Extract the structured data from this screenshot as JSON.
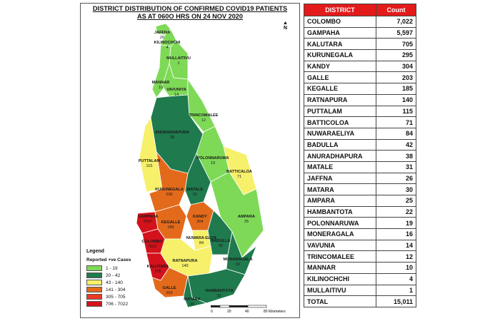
{
  "map": {
    "title_line1": "DISTRICT DISTRIBUTION OF CONFIRMED COVID19 PATIENTS",
    "title_line2": "AS AT 060O HRS ON 24 NOV 2020",
    "north_label": "N",
    "colors": {
      "c1": "#7ed957",
      "c2": "#1f7a4e",
      "c3": "#f6f06a",
      "c4": "#e36a1b",
      "c5": "#ea3a22",
      "c6": "#d3121c"
    },
    "legend": {
      "title": "Legend",
      "subtitle": "Reported +ve Cases",
      "items": [
        {
          "label": "1 - 19",
          "color": "#7ed957"
        },
        {
          "label": "20 - 42",
          "color": "#1f7a4e"
        },
        {
          "label": "43 - 140",
          "color": "#f6f06a"
        },
        {
          "label": "141 - 304",
          "color": "#e36a1b"
        },
        {
          "label": "305 - 705",
          "color": "#ea3a22"
        },
        {
          "label": "706 - 7022",
          "color": "#d3121c"
        }
      ]
    },
    "scale": {
      "labels": [
        "0",
        "20",
        "40",
        "80 Kilometers"
      ]
    },
    "districts": [
      {
        "name": "JAFFNA",
        "count": "26"
      },
      {
        "name": "KILINOCHCHI",
        "count": "4"
      },
      {
        "name": "MULLAITIVU",
        "count": "1"
      },
      {
        "name": "MANNAR",
        "count": "10"
      },
      {
        "name": "VAVUNIYA",
        "count": "14"
      },
      {
        "name": "TRINCOMALEE",
        "count": "12"
      },
      {
        "name": "ANURADHAPURA",
        "count": "38"
      },
      {
        "name": "PUTTALAM",
        "count": "115"
      },
      {
        "name": "POLONNARUWA",
        "count": "19"
      },
      {
        "name": "BATTICALOA",
        "count": "71"
      },
      {
        "name": "KURUNEGALA",
        "count": "295"
      },
      {
        "name": "MATALE",
        "count": "31"
      },
      {
        "name": "KANDY",
        "count": "304"
      },
      {
        "name": "AMPARA",
        "count": "25"
      },
      {
        "name": "GAMPAHA",
        "count": "5597"
      },
      {
        "name": "KEGALLE",
        "count": "185"
      },
      {
        "name": "NUWARA ELIYA",
        "count": "84"
      },
      {
        "name": "BADULLA",
        "count": "42"
      },
      {
        "name": "COLOMBO",
        "count": "7022"
      },
      {
        "name": "MONARAGALA",
        "count": "16"
      },
      {
        "name": "RATNAPURA",
        "count": "140"
      },
      {
        "name": "KALUTARA",
        "count": "705"
      },
      {
        "name": "GALLE",
        "count": "203"
      },
      {
        "name": "HAMBANTOTA",
        "count": "22"
      },
      {
        "name": "MATARA",
        "count": "30"
      }
    ]
  },
  "table": {
    "header_district": "DISTRICT",
    "header_count": "Count",
    "header_color": "#e31b1b",
    "rows": [
      {
        "district": "COLOMBO",
        "count": "7,022"
      },
      {
        "district": "GAMPAHA",
        "count": "5,597"
      },
      {
        "district": "KALUTARA",
        "count": "705"
      },
      {
        "district": "KURUNEGALA",
        "count": "295"
      },
      {
        "district": "KANDY",
        "count": "304"
      },
      {
        "district": "GALLE",
        "count": "203"
      },
      {
        "district": "KEGALLE",
        "count": "185"
      },
      {
        "district": "RATNAPURA",
        "count": "140"
      },
      {
        "district": "PUTTALAM",
        "count": "115"
      },
      {
        "district": "BATTICOLOA",
        "count": "71"
      },
      {
        "district": "NUWARAELIYA",
        "count": "84"
      },
      {
        "district": "BADULLA",
        "count": "42"
      },
      {
        "district": "ANURADHAPURA",
        "count": "38"
      },
      {
        "district": "MATALE",
        "count": "31"
      },
      {
        "district": "JAFFNA",
        "count": "26"
      },
      {
        "district": "MATARA",
        "count": "30"
      },
      {
        "district": "AMPARA",
        "count": "25"
      },
      {
        "district": "HAMBANTOTA",
        "count": "22"
      },
      {
        "district": "POLONNARUWA",
        "count": "19"
      },
      {
        "district": "MONERAGALA",
        "count": "16"
      },
      {
        "district": "VAVUNIA",
        "count": "14"
      },
      {
        "district": "TRINCOMALEE",
        "count": "12"
      },
      {
        "district": "MANNAR",
        "count": "10"
      },
      {
        "district": "KILINOCHCHI",
        "count": "4"
      },
      {
        "district": "MULLAITIVU",
        "count": "1"
      }
    ],
    "total_label": "TOTAL",
    "total_value": "15,011"
  }
}
